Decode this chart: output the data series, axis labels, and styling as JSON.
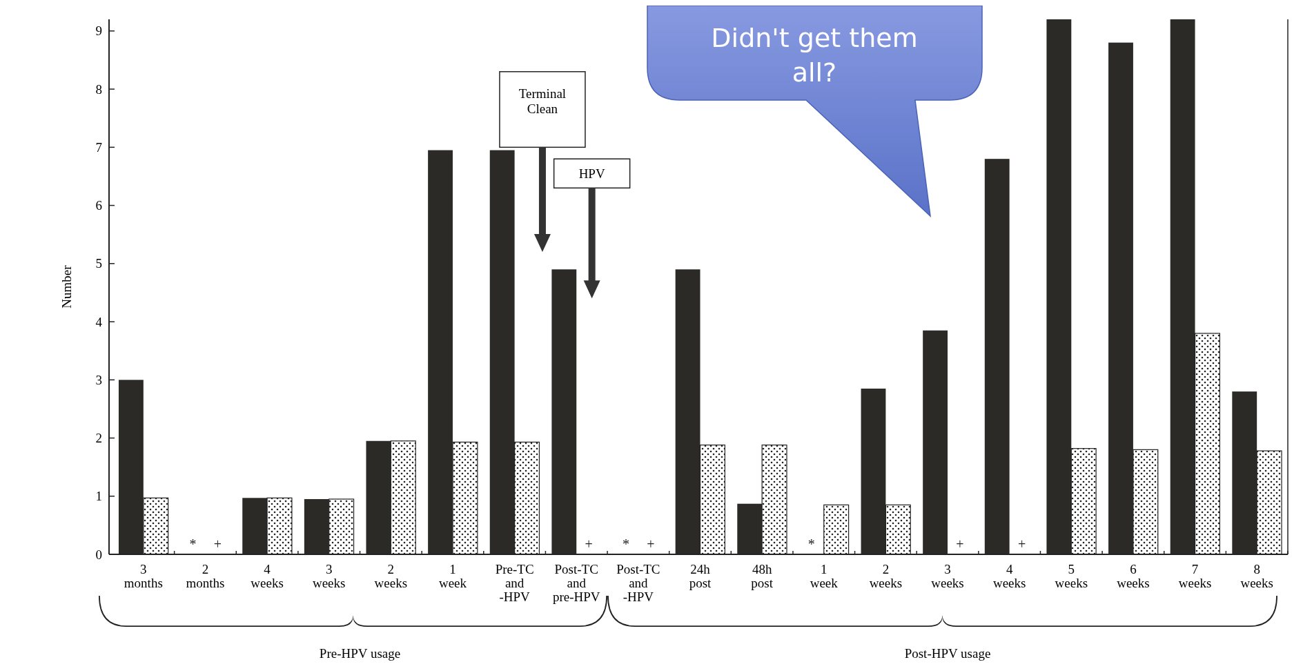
{
  "chart_data": {
    "type": "bar",
    "ylabel": "Number",
    "categories": [
      "3\nmonths",
      "2\nmonths",
      "4\nweeks",
      "3\nweeks",
      "2\nweeks",
      "1\nweek",
      "Pre-TC\nand\n-HPV",
      "Post-TC\nand\npre-HPV",
      "Post-TC\nand\n-HPV",
      "24h\npost",
      "48h\npost",
      "1\nweek",
      "2\nweeks",
      "3\nweeks",
      "4\nweeks",
      "5\nweeks",
      "6\nweeks",
      "7\nweeks",
      "8\nweeks"
    ],
    "series": [
      {
        "color": "#2b2a27",
        "values": [
          3.0,
          0,
          0.97,
          0.95,
          1.95,
          6.95,
          6.95,
          4.9,
          0,
          4.9,
          0.87,
          0,
          2.85,
          3.85,
          6.8,
          9.2,
          8.8,
          9.2,
          2.8
        ],
        "value_labels": [
          null,
          "*",
          null,
          null,
          null,
          null,
          null,
          null,
          "*",
          null,
          null,
          "*",
          null,
          null,
          null,
          null,
          null,
          null,
          null
        ]
      },
      {
        "color": "#ffffff",
        "values": [
          0.97,
          0,
          0.97,
          0.95,
          1.95,
          1.93,
          1.93,
          0,
          0,
          1.88,
          1.88,
          0.85,
          0.85,
          0,
          0,
          1.82,
          1.8,
          3.8,
          1.78
        ],
        "value_labels": [
          null,
          "+",
          null,
          null,
          null,
          null,
          null,
          "+",
          "+",
          null,
          null,
          null,
          null,
          "+",
          "+",
          null,
          null,
          null,
          null
        ]
      }
    ],
    "ylim": [
      0,
      9.2
    ],
    "yticks": [
      0,
      1,
      2,
      3,
      4,
      5,
      6,
      7,
      8,
      9
    ],
    "grid": false,
    "annotations": [
      "Terminal Clean",
      "HPV",
      "Pre-HPV usage",
      "Post-HPV usage",
      "Didn't get them all?"
    ]
  }
}
